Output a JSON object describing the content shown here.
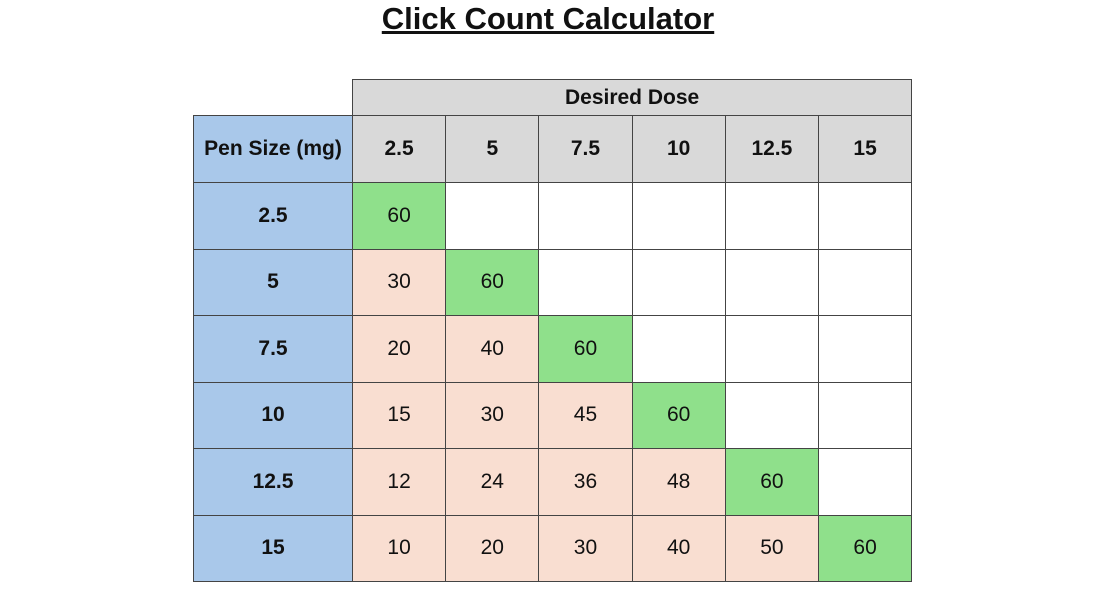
{
  "title": "Click Count Calculator",
  "table": {
    "group_header": "Desired Dose",
    "corner_header": "Pen Size (mg)",
    "columns": [
      "2.5",
      "5",
      "7.5",
      "10",
      "12.5",
      "15"
    ],
    "rows": [
      {
        "label": "2.5",
        "cells": [
          60,
          null,
          null,
          null,
          null,
          null
        ]
      },
      {
        "label": "5",
        "cells": [
          30,
          60,
          null,
          null,
          null,
          null
        ]
      },
      {
        "label": "7.5",
        "cells": [
          20,
          40,
          60,
          null,
          null,
          null
        ]
      },
      {
        "label": "10",
        "cells": [
          15,
          30,
          45,
          60,
          null,
          null
        ]
      },
      {
        "label": "12.5",
        "cells": [
          12,
          24,
          36,
          48,
          60,
          null
        ]
      },
      {
        "label": "15",
        "cells": [
          10,
          20,
          30,
          40,
          50,
          60
        ]
      }
    ]
  }
}
